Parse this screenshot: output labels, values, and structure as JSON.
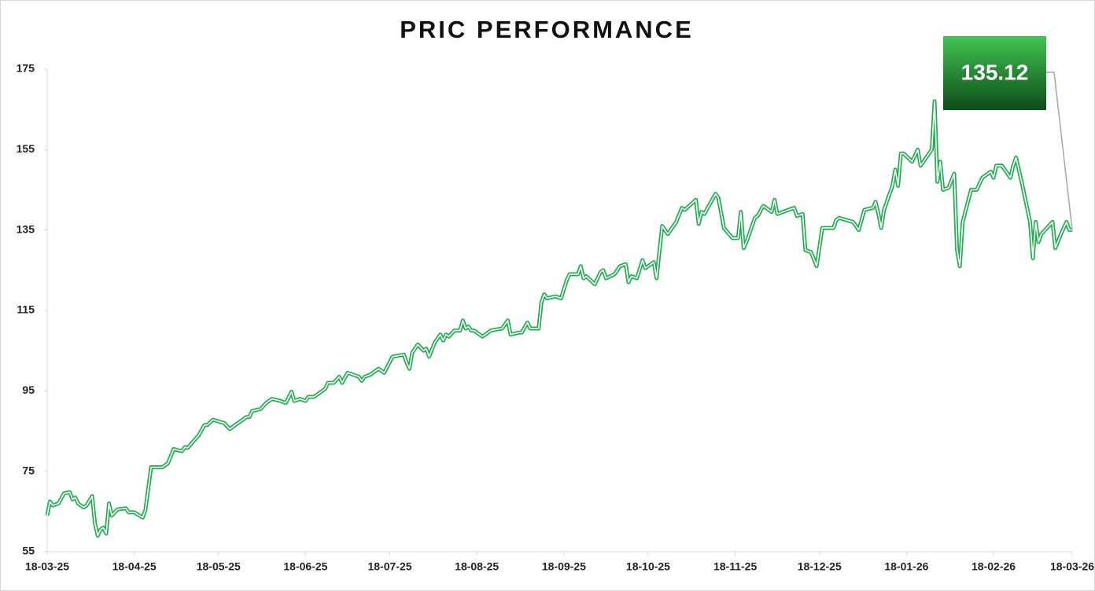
{
  "chart_data": {
    "type": "line",
    "title": "PRIC PERFORMANCE",
    "x": [
      "2025-03-18",
      "2025-03-19",
      "2025-03-20",
      "2025-03-22",
      "2025-03-24",
      "2025-03-26",
      "2025-03-27",
      "2025-03-28",
      "2025-03-29",
      "2025-03-31",
      "2025-04-01",
      "2025-04-03",
      "2025-04-04",
      "2025-04-05",
      "2025-04-06",
      "2025-04-07",
      "2025-04-08",
      "2025-04-09",
      "2025-04-10",
      "2025-04-12",
      "2025-04-15",
      "2025-04-16",
      "2025-04-18",
      "2025-04-21",
      "2025-04-22",
      "2025-04-24",
      "2025-04-28",
      "2025-04-30",
      "2025-05-02",
      "2025-05-05",
      "2025-05-06",
      "2025-05-07",
      "2025-05-11",
      "2025-05-13",
      "2025-05-14",
      "2025-05-16",
      "2025-05-20",
      "2025-05-22",
      "2025-05-24",
      "2025-05-28",
      "2025-05-29",
      "2025-05-30",
      "2025-06-02",
      "2025-06-04",
      "2025-06-06",
      "2025-06-09",
      "2025-06-11",
      "2025-06-13",
      "2025-06-14",
      "2025-06-16",
      "2025-06-18",
      "2025-06-19",
      "2025-06-21",
      "2025-06-25",
      "2025-06-26",
      "2025-06-28",
      "2025-06-30",
      "2025-07-01",
      "2025-07-03",
      "2025-07-07",
      "2025-07-08",
      "2025-07-09",
      "2025-07-11",
      "2025-07-14",
      "2025-07-16",
      "2025-07-19",
      "2025-07-23",
      "2025-07-24",
      "2025-07-25",
      "2025-07-26",
      "2025-07-28",
      "2025-07-30",
      "2025-07-31",
      "2025-08-01",
      "2025-08-03",
      "2025-08-05",
      "2025-08-06",
      "2025-08-07",
      "2025-08-08",
      "2025-08-10",
      "2025-08-12",
      "2025-08-13",
      "2025-08-14",
      "2025-08-15",
      "2025-08-16",
      "2025-08-17",
      "2025-08-20",
      "2025-08-23",
      "2025-08-27",
      "2025-08-29",
      "2025-08-30",
      "2025-09-02",
      "2025-09-03",
      "2025-09-05",
      "2025-09-06",
      "2025-09-09",
      "2025-09-10",
      "2025-09-11",
      "2025-09-12",
      "2025-09-15",
      "2025-09-17",
      "2025-09-19",
      "2025-09-20",
      "2025-09-23",
      "2025-09-24",
      "2025-09-25",
      "2025-09-26",
      "2025-09-29",
      "2025-10-01",
      "2025-10-02",
      "2025-10-03",
      "2025-10-06",
      "2025-10-08",
      "2025-10-10",
      "2025-10-11",
      "2025-10-12",
      "2025-10-14",
      "2025-10-16",
      "2025-10-17",
      "2025-10-20",
      "2025-10-21",
      "2025-10-23",
      "2025-10-25",
      "2025-10-28",
      "2025-10-30",
      "2025-10-31",
      "2025-11-04",
      "2025-11-05",
      "2025-11-06",
      "2025-11-07",
      "2025-11-11",
      "2025-11-12",
      "2025-11-14",
      "2025-11-17",
      "2025-11-19",
      "2025-11-20",
      "2025-11-21",
      "2025-11-22",
      "2025-11-25",
      "2025-11-26",
      "2025-11-28",
      "2025-12-01",
      "2025-12-02",
      "2025-12-03",
      "2025-12-05",
      "2025-12-09",
      "2025-12-10",
      "2025-12-12",
      "2025-12-13",
      "2025-12-15",
      "2025-12-17",
      "2025-12-19",
      "2025-12-23",
      "2025-12-24",
      "2025-12-25",
      "2025-12-30",
      "2026-01-01",
      "2026-01-03",
      "2026-01-06",
      "2026-01-07",
      "2026-01-08",
      "2026-01-09",
      "2026-01-10",
      "2026-01-13",
      "2026-01-14",
      "2026-01-15",
      "2026-01-16",
      "2026-01-17",
      "2026-01-20",
      "2026-01-22",
      "2026-01-23",
      "2026-01-27",
      "2026-01-28",
      "2026-01-29",
      "2026-01-30",
      "2026-01-31",
      "2026-02-02",
      "2026-02-04",
      "2026-02-05",
      "2026-02-06",
      "2026-02-07",
      "2026-02-10",
      "2026-02-12",
      "2026-02-14",
      "2026-02-17",
      "2026-02-18",
      "2026-02-19",
      "2026-02-21",
      "2026-02-24",
      "2026-02-25",
      "2026-02-26",
      "2026-02-28",
      "2026-03-03",
      "2026-03-04",
      "2026-03-05",
      "2026-03-06",
      "2026-03-07",
      "2026-03-11",
      "2026-03-12",
      "2026-03-14",
      "2026-03-16",
      "2026-03-17",
      "2026-03-18"
    ],
    "series": [
      {
        "name": "PRIC",
        "color": "#1fae4f",
        "values": [
          64,
          67.5,
          66.5,
          67,
          69.5,
          69.8,
          68,
          68.5,
          67,
          66,
          66.5,
          68.8,
          62,
          59,
          60.5,
          61,
          59.5,
          67,
          64,
          65.5,
          65.8,
          64.8,
          64.8,
          63.5,
          65.5,
          76,
          76,
          77,
          80.5,
          80,
          81,
          80.8,
          84,
          86.5,
          86.5,
          87.8,
          87,
          85.5,
          86.5,
          88.5,
          88.5,
          90,
          90.5,
          92,
          93,
          92.5,
          92,
          94.8,
          92.5,
          93,
          92.5,
          93.5,
          93.5,
          95.5,
          97,
          97,
          98.5,
          97,
          99.5,
          98.5,
          97.5,
          98.5,
          99,
          100.5,
          99.5,
          103.5,
          104,
          102,
          100.5,
          104.5,
          106.5,
          105,
          105.5,
          103.5,
          107,
          109,
          107.5,
          109,
          108.5,
          110,
          110,
          112.5,
          110.5,
          111,
          110,
          110,
          108.5,
          110,
          110.5,
          112.5,
          109,
          109.5,
          109.5,
          112,
          110.5,
          110.5,
          117,
          119,
          118,
          118.5,
          118,
          122.5,
          124,
          124,
          126,
          123,
          123.5,
          121.5,
          124.5,
          125,
          123,
          124,
          126,
          126.5,
          122,
          123.5,
          123,
          127.5,
          125.5,
          127,
          123,
          136,
          134,
          137,
          140.5,
          140,
          142.5,
          136.5,
          139.5,
          139,
          144,
          143,
          135.5,
          133,
          133,
          139.5,
          130.5,
          132,
          138,
          138.5,
          141,
          139.5,
          142.5,
          139,
          139.5,
          140.5,
          138.5,
          139,
          130,
          129.5,
          126,
          135.5,
          135.5,
          137.5,
          138,
          137,
          135,
          140,
          140.5,
          142,
          139,
          135.5,
          140,
          146,
          150,
          146,
          154,
          154,
          152,
          155,
          151,
          155,
          167,
          147,
          152,
          145,
          145.5,
          149,
          130,
          126,
          137,
          145,
          145,
          148,
          149.5,
          148,
          151,
          151,
          148,
          151,
          153,
          147,
          137,
          128,
          137,
          132,
          134,
          137,
          130.5,
          134,
          137,
          135,
          135.12
        ]
      }
    ],
    "xlim": [
      "2025-03-18",
      "2026-03-18"
    ],
    "xticks": [
      {
        "value": "2025-03-18",
        "label": "18-03-25"
      },
      {
        "value": "2025-04-18",
        "label": "18-04-25"
      },
      {
        "value": "2025-05-18",
        "label": "18-05-25"
      },
      {
        "value": "2025-06-18",
        "label": "18-06-25"
      },
      {
        "value": "2025-07-18",
        "label": "18-07-25"
      },
      {
        "value": "2025-08-18",
        "label": "18-08-25"
      },
      {
        "value": "2025-09-18",
        "label": "18-09-25"
      },
      {
        "value": "2025-10-18",
        "label": "18-10-25"
      },
      {
        "value": "2025-11-18",
        "label": "18-11-25"
      },
      {
        "value": "2025-12-18",
        "label": "18-12-25"
      },
      {
        "value": "2026-01-18",
        "label": "18-01-26"
      },
      {
        "value": "2026-02-18",
        "label": "18-02-26"
      },
      {
        "value": "2026-03-18",
        "label": "18-03-26"
      }
    ],
    "ylim": [
      55,
      175
    ],
    "yticks": [
      55,
      75,
      95,
      115,
      135,
      155,
      175
    ],
    "grid": false
  }
}
